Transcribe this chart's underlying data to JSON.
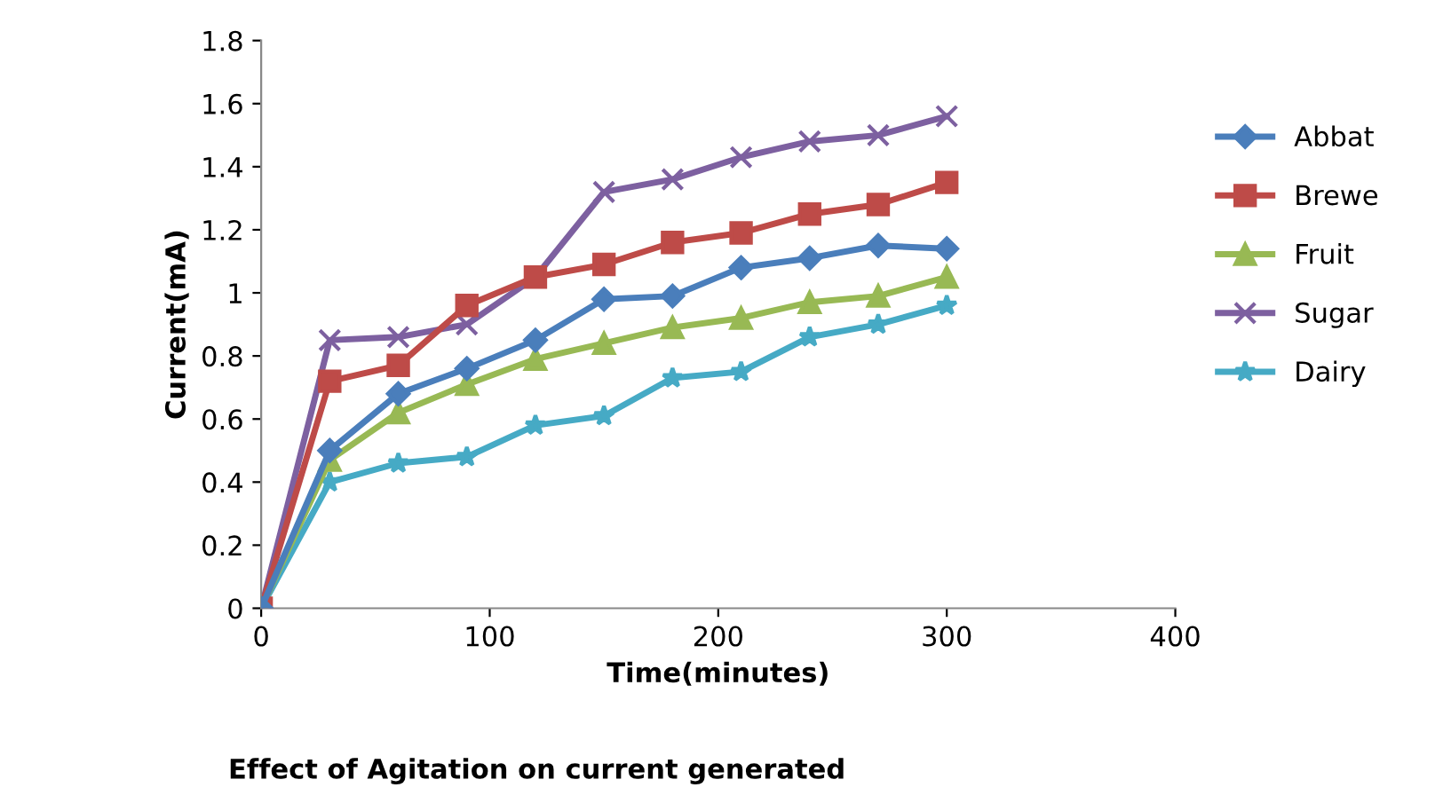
{
  "chart_data": {
    "type": "line",
    "title": "Effect of Agitation on current generated",
    "xlabel": "Time(minutes)",
    "ylabel": "Current(mA)",
    "x": [
      0,
      30,
      60,
      90,
      120,
      150,
      180,
      210,
      240,
      270,
      300
    ],
    "series": [
      {
        "name": "Abbat",
        "color": "#4a7ebb",
        "marker": "diamond",
        "values": [
          0,
          0.5,
          0.68,
          0.76,
          0.85,
          0.98,
          0.99,
          1.08,
          1.11,
          1.15,
          1.14
        ]
      },
      {
        "name": "Brewe",
        "color": "#be4b48",
        "marker": "square",
        "values": [
          0,
          0.72,
          0.77,
          0.96,
          1.05,
          1.09,
          1.16,
          1.19,
          1.25,
          1.28,
          1.35
        ]
      },
      {
        "name": "Fruit",
        "color": "#98b954",
        "marker": "triangle",
        "values": [
          0,
          0.47,
          0.62,
          0.71,
          0.79,
          0.84,
          0.89,
          0.92,
          0.97,
          0.99,
          1.05
        ]
      },
      {
        "name": "Sugar",
        "color": "#7d60a0",
        "marker": "cross",
        "values": [
          0,
          0.85,
          0.86,
          0.9,
          1.05,
          1.32,
          1.36,
          1.43,
          1.48,
          1.5,
          1.56
        ]
      },
      {
        "name": "Dairy",
        "color": "#46aac5",
        "marker": "star",
        "values": [
          0,
          0.4,
          0.46,
          0.48,
          0.58,
          0.61,
          0.73,
          0.75,
          0.86,
          0.9,
          0.96
        ]
      }
    ],
    "xlim": [
      0,
      400
    ],
    "xticks": [
      0,
      100,
      200,
      300,
      400
    ],
    "ylim": [
      0,
      1.8
    ],
    "yticks": [
      0,
      0.2,
      0.4,
      0.6,
      0.8,
      1,
      1.2,
      1.4,
      1.6,
      1.8
    ],
    "grid": false,
    "legend": "right",
    "line_style": "solid"
  }
}
